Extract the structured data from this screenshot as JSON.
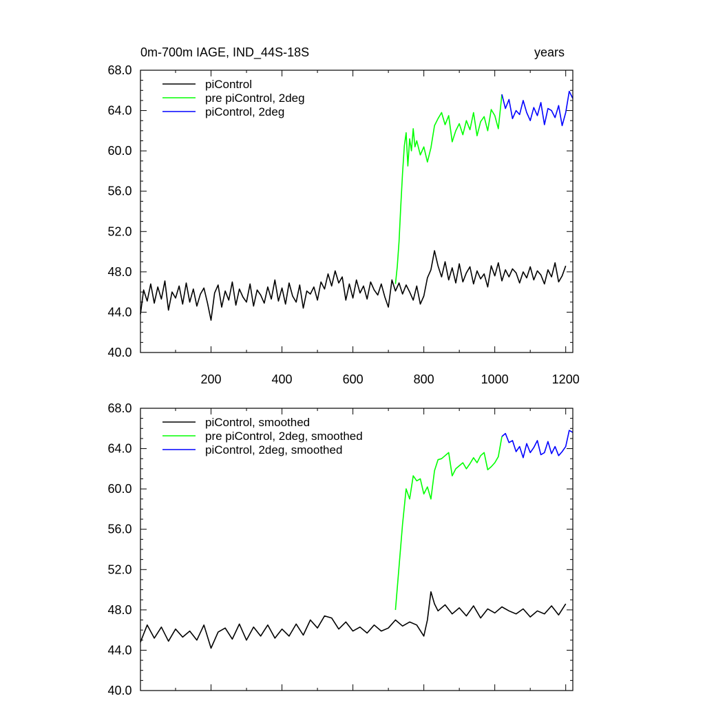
{
  "chart_data": [
    {
      "type": "line",
      "title": "0m-700m IAGE, IND_44S-18S",
      "units_label": "years",
      "xlim": [
        1,
        1220
      ],
      "ylim": [
        40,
        68
      ],
      "x_ticks": [
        200,
        400,
        600,
        800,
        1000,
        1200
      ],
      "x_tick_labels": [
        "200",
        "400",
        "600",
        "800",
        "1000",
        "1200"
      ],
      "y_ticks": [
        40,
        44,
        48,
        52,
        56,
        60,
        64,
        68
      ],
      "y_tick_labels": [
        "40.0",
        "44.0",
        "48.0",
        "52.0",
        "56.0",
        "60.0",
        "64.0",
        "68.0"
      ],
      "legend_position": "top-left",
      "series": [
        {
          "name": "piControl",
          "color": "#000000",
          "x": [
            1,
            10,
            20,
            30,
            40,
            50,
            60,
            70,
            80,
            90,
            100,
            110,
            120,
            130,
            140,
            150,
            160,
            170,
            180,
            190,
            200,
            210,
            220,
            230,
            240,
            250,
            260,
            270,
            280,
            290,
            300,
            310,
            320,
            330,
            340,
            350,
            360,
            370,
            380,
            390,
            400,
            410,
            420,
            430,
            440,
            450,
            460,
            470,
            480,
            490,
            500,
            510,
            520,
            530,
            540,
            550,
            560,
            570,
            580,
            590,
            600,
            610,
            620,
            630,
            640,
            650,
            660,
            670,
            680,
            690,
            700,
            710,
            720,
            730,
            740,
            750,
            760,
            770,
            780,
            790,
            800,
            810,
            820,
            830,
            840,
            850,
            860,
            870,
            880,
            890,
            900,
            910,
            920,
            930,
            940,
            950,
            960,
            970,
            980,
            990,
            1000,
            1010,
            1020,
            1030,
            1040,
            1050,
            1060,
            1070,
            1080,
            1090,
            1100,
            1110,
            1120,
            1130,
            1140,
            1150,
            1160,
            1170,
            1180,
            1190,
            1200
          ],
          "values": [
            43.8,
            46.2,
            45.1,
            46.8,
            44.9,
            46.5,
            45.3,
            47.1,
            44.2,
            46.0,
            45.4,
            46.6,
            44.8,
            46.9,
            45.0,
            46.3,
            44.6,
            45.8,
            46.4,
            44.9,
            43.2,
            45.9,
            46.7,
            44.5,
            46.1,
            45.2,
            47.0,
            44.7,
            46.3,
            45.5,
            45.0,
            46.8,
            44.6,
            46.2,
            45.7,
            44.9,
            46.5,
            45.3,
            47.2,
            45.1,
            46.4,
            44.8,
            46.9,
            45.6,
            45.0,
            46.7,
            44.4,
            46.1,
            45.8,
            46.5,
            45.2,
            47.0,
            46.3,
            47.8,
            46.6,
            48.1,
            46.9,
            47.5,
            45.2,
            46.8,
            45.4,
            47.2,
            45.9,
            46.6,
            45.3,
            47.0,
            46.2,
            45.7,
            46.8,
            45.5,
            44.5,
            47.2,
            46.1,
            46.9,
            45.8,
            46.7,
            46.0,
            45.2,
            46.6,
            44.8,
            45.6,
            47.4,
            48.2,
            50.1,
            48.6,
            47.5,
            49.0,
            47.2,
            48.4,
            46.9,
            48.8,
            47.0,
            47.9,
            48.5,
            46.8,
            48.1,
            47.3,
            47.8,
            46.5,
            48.6,
            47.6,
            48.9,
            47.1,
            48.2,
            47.5,
            48.3,
            47.9,
            46.9,
            48.0,
            47.4,
            48.5,
            47.2,
            48.1,
            47.7,
            46.8,
            48.2,
            47.5,
            48.9,
            47.0,
            47.6,
            48.6
          ]
        },
        {
          "name": "pre piControl, 2deg",
          "color": "#00ff00",
          "x": [
            720,
            725,
            730,
            735,
            740,
            745,
            750,
            755,
            760,
            765,
            770,
            775,
            780,
            790,
            800,
            810,
            820,
            830,
            840,
            850,
            860,
            870,
            880,
            890,
            900,
            910,
            920,
            930,
            940,
            950,
            960,
            970,
            980,
            990,
            1000,
            1010,
            1020
          ],
          "values": [
            46.8,
            48.5,
            51.0,
            54.5,
            57.8,
            60.5,
            61.8,
            58.5,
            61.2,
            60.0,
            62.2,
            60.4,
            61.0,
            59.6,
            60.4,
            58.9,
            60.3,
            62.5,
            63.2,
            63.8,
            62.6,
            63.5,
            60.9,
            62.0,
            62.7,
            61.6,
            63.0,
            62.1,
            63.8,
            61.5,
            62.9,
            63.4,
            62.0,
            64.1,
            63.5,
            62.2,
            65.6
          ]
        },
        {
          "name": "piControl, 2deg",
          "color": "#0000ff",
          "x": [
            1020,
            1030,
            1040,
            1050,
            1060,
            1070,
            1080,
            1090,
            1100,
            1110,
            1120,
            1130,
            1140,
            1150,
            1160,
            1170,
            1180,
            1190,
            1200,
            1210,
            1220
          ],
          "values": [
            65.6,
            64.2,
            65.1,
            63.2,
            64.0,
            63.6,
            65.0,
            63.8,
            63.0,
            64.3,
            63.5,
            64.8,
            62.6,
            64.2,
            64.0,
            63.3,
            64.5,
            62.5,
            63.8,
            65.9,
            65.2
          ]
        }
      ]
    },
    {
      "type": "line",
      "xlim": [
        1,
        1220
      ],
      "ylim": [
        40,
        68
      ],
      "x_ticks": [
        200,
        400,
        600,
        800,
        1000,
        1200
      ],
      "y_ticks": [
        40,
        44,
        48,
        52,
        56,
        60,
        64,
        68
      ],
      "y_tick_labels": [
        "40.0",
        "44.0",
        "48.0",
        "52.0",
        "56.0",
        "60.0",
        "64.0",
        "68.0"
      ],
      "legend_position": "top-left",
      "series": [
        {
          "name": "piControl, smoothed",
          "color": "#000000",
          "x": [
            1,
            20,
            40,
            60,
            80,
            100,
            120,
            140,
            160,
            180,
            200,
            220,
            240,
            260,
            280,
            300,
            320,
            340,
            360,
            380,
            400,
            420,
            440,
            460,
            480,
            500,
            520,
            540,
            560,
            580,
            600,
            620,
            640,
            660,
            680,
            700,
            720,
            740,
            760,
            780,
            800,
            810,
            820,
            830,
            840,
            860,
            880,
            900,
            920,
            940,
            960,
            980,
            1000,
            1020,
            1040,
            1060,
            1080,
            1100,
            1120,
            1140,
            1160,
            1180,
            1200
          ],
          "values": [
            44.8,
            46.5,
            45.2,
            46.3,
            44.9,
            46.1,
            45.3,
            45.9,
            45.0,
            46.5,
            44.2,
            45.8,
            46.2,
            45.1,
            46.6,
            45.0,
            46.3,
            45.4,
            46.5,
            45.2,
            46.1,
            45.4,
            46.6,
            45.5,
            47.0,
            46.2,
            47.4,
            47.2,
            46.1,
            46.8,
            45.9,
            46.3,
            45.7,
            46.5,
            45.9,
            46.2,
            47.0,
            46.4,
            46.8,
            46.5,
            45.4,
            47.0,
            49.8,
            48.6,
            47.9,
            48.5,
            47.6,
            48.2,
            47.4,
            48.4,
            47.2,
            48.1,
            47.7,
            48.3,
            47.9,
            47.6,
            48.1,
            47.3,
            47.9,
            47.6,
            48.4,
            47.5,
            48.6
          ]
        },
        {
          "name": "pre piControl, 2deg, smoothed",
          "color": "#00ff00",
          "x": [
            720,
            740,
            750,
            760,
            770,
            780,
            790,
            800,
            810,
            820,
            830,
            840,
            850,
            860,
            870,
            880,
            890,
            900,
            910,
            920,
            930,
            940,
            950,
            960,
            970,
            980,
            990,
            1000,
            1010,
            1020
          ],
          "values": [
            48.0,
            56.5,
            60.0,
            59.0,
            61.3,
            60.8,
            61.0,
            59.5,
            60.2,
            59.0,
            61.8,
            62.9,
            63.0,
            63.3,
            63.6,
            61.3,
            62.0,
            62.3,
            62.6,
            62.0,
            62.5,
            63.1,
            62.6,
            63.3,
            63.6,
            61.9,
            62.2,
            62.6,
            63.2,
            65.2
          ]
        },
        {
          "name": "piControl, 2deg, smoothed",
          "color": "#0000ff",
          "x": [
            1020,
            1030,
            1040,
            1050,
            1060,
            1070,
            1080,
            1090,
            1100,
            1110,
            1120,
            1130,
            1140,
            1150,
            1160,
            1170,
            1180,
            1190,
            1200,
            1210,
            1220
          ],
          "values": [
            65.2,
            65.5,
            64.6,
            64.8,
            63.7,
            64.2,
            63.1,
            64.5,
            63.6,
            64.1,
            64.8,
            63.4,
            63.6,
            64.7,
            63.5,
            64.2,
            63.3,
            63.7,
            64.2,
            65.8,
            65.6
          ]
        }
      ]
    }
  ]
}
